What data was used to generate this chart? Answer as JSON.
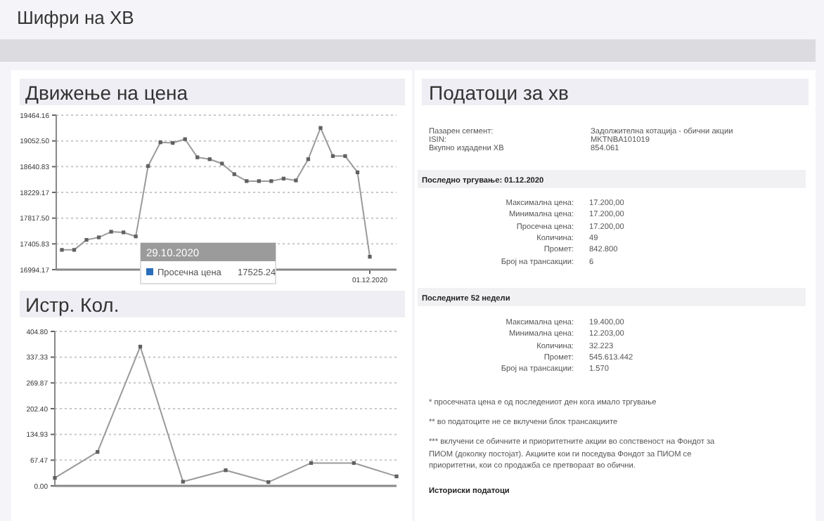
{
  "chart_data": [
    {
      "type": "line",
      "title": "Движење на цена",
      "categories": [
        null,
        null,
        null,
        null,
        null,
        null,
        null,
        null,
        null,
        null,
        null,
        null,
        null,
        null,
        null,
        null,
        null,
        null,
        null,
        null,
        null,
        null,
        null,
        null,
        null,
        "01.12.2020"
      ],
      "ylim": [
        16994.17,
        19464.16
      ],
      "yticks": [
        {
          "value": 16994.17,
          "label": "16994.17"
        },
        {
          "value": 17405.83,
          "label": "17405.83"
        },
        {
          "value": 17817.5,
          "label": "17817.50"
        },
        {
          "value": 18229.17,
          "label": "18229.17"
        },
        {
          "value": 18640.83,
          "label": "18640.83"
        },
        {
          "value": 19052.5,
          "label": "19052.50"
        },
        {
          "value": 19464.16,
          "label": "19464.16"
        }
      ],
      "series": [
        {
          "color": "#9a9a9a",
          "values": [
            17310,
            17310,
            17470,
            17510,
            17600,
            17590,
            17525.24,
            18650,
            19030,
            19020,
            19080,
            18790,
            18760,
            18690,
            18520,
            18410,
            18410,
            18410,
            18450,
            18420,
            18760,
            19260,
            18810,
            18810,
            18550,
            17200
          ]
        }
      ],
      "marker": "square",
      "grid": "y",
      "annotations": [
        "29.10.2020",
        "Просечна цена",
        "17525.24"
      ]
    },
    {
      "type": "line",
      "title": "Истр. Кол.",
      "categories": [
        null,
        null,
        null,
        null,
        null,
        null,
        null,
        null,
        null
      ],
      "ylim": [
        0,
        404.8
      ],
      "yticks": [
        {
          "value": 0,
          "label": "0.00"
        },
        {
          "value": 67.47,
          "label": "67.47"
        },
        {
          "value": 134.93,
          "label": "134.93"
        },
        {
          "value": 202.4,
          "label": "202.40"
        },
        {
          "value": 269.87,
          "label": "269.87"
        },
        {
          "value": 337.33,
          "label": "337.33"
        },
        {
          "value": 404.8,
          "label": "404.80"
        }
      ],
      "series": [
        {
          "color": "#9a9a9a",
          "values": [
            21,
            89,
            365,
            11,
            41,
            10,
            60,
            60,
            25
          ]
        }
      ],
      "marker": "square",
      "grid": "y"
    },
    {
      "type": "other",
      "title": "Податоци за хв",
      "annotations": [
        "Шифри на ХВ",
        "Пазарен сегмент:",
        "Задолжителна котација - обични акции",
        "ISIN:",
        "MKTNBA101019",
        "Вкупно издадени ХВ",
        "854.061",
        "Последно тргување: 01.12.2020",
        "Максимална цена:",
        "17.200,00",
        "Минимална цена:",
        "17.200,00",
        "Просечна цена:",
        "17.200,00",
        "Количина:",
        "49",
        "Промет:",
        "842.800",
        "Број на трансакции:",
        "6",
        "Последните 52 недели",
        "Максимална цена:",
        "19.400,00",
        "Минимална цена:",
        "12.203,00",
        "Количина:",
        "32.223",
        "Промет:",
        "545.613.442",
        "Број на трансакции:",
        "1.570",
        "* просечната цена е од последениот ден кога имало тргување",
        "** во податоците не се вклучени блок трансакциите",
        "*** вклучени се обичните и приоритетните акции во сопственост на Фондот за",
        "ПИОМ (доколку постојат). Акциите кои ги поседува Фондот за ПИОМ се",
        "приоритетни, кои со продажба се претвораат во обични.",
        "Историски податоци"
      ]
    }
  ]
}
